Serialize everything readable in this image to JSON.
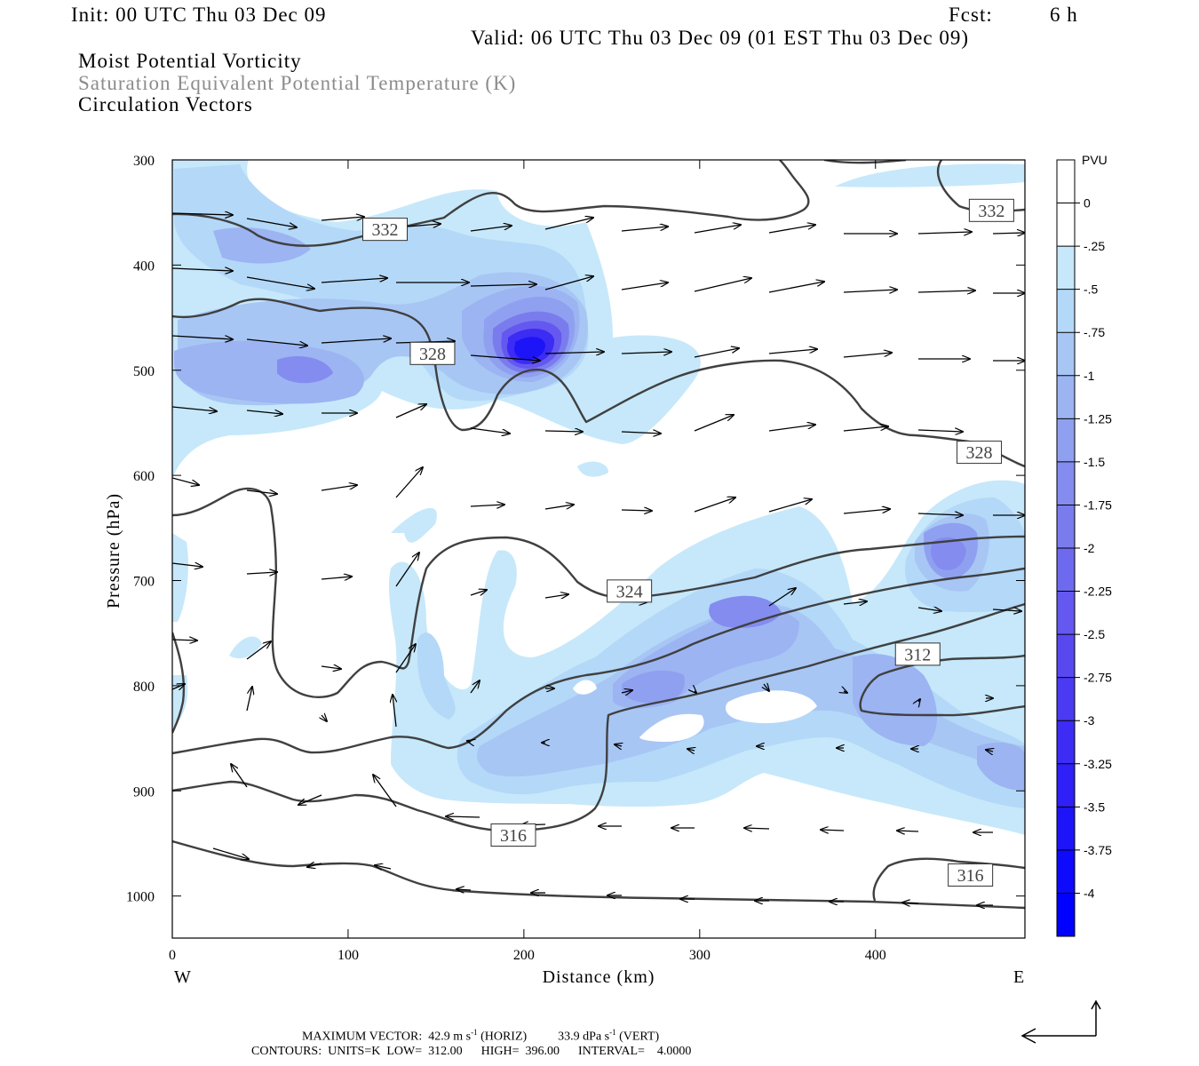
{
  "header": {
    "init": "Init: 00 UTC Thu 03 Dec 09",
    "fcst_label": "Fcst:",
    "fcst_value": "6 h",
    "valid": "Valid: 06 UTC Thu 03 Dec 09 (01 EST Thu 03 Dec 09)",
    "field1": "Moist Potential Vorticity",
    "field2": "Saturation Equivalent Potential Temperature (K)",
    "field3": "Circulation Vectors"
  },
  "footer": {
    "line1a": "MAXIMUM VECTOR:  42.9 m s",
    "line1a_sup": "-1",
    "line1b": " (HORIZ)          33.9 dPa s",
    "line1b_sup": "-1",
    "line1c": " (VERT)",
    "line2": "CONTOURS:  UNITS=K  LOW=  312.00      HIGH=  396.00      INTERVAL=    4.0000"
  },
  "colors": {
    "c_m025": "#c6e8fa",
    "c_m05": "#b4d8f8",
    "c_m075": "#a8c6f4",
    "c_m1": "#9cb4f2",
    "c_m125": "#90a0f0",
    "c_m15": "#848cef",
    "c_m175": "#7a7cee",
    "c_m2": "#6e6aef",
    "c_m225": "#6458f0",
    "c_m25": "#5848f0",
    "c_m3": "#3c2cf4",
    "c_m35": "#1e14f8",
    "c_m4": "#0000ff",
    "contour": "#404040"
  },
  "chart_data": {
    "type": "contour",
    "xlabel": "Distance (km)",
    "ylabel": "Pressure (hPa)",
    "x_range": [
      0,
      485
    ],
    "y_range": [
      300,
      1040
    ],
    "y_inverted": true,
    "x_ticks": [
      0,
      100,
      200,
      300,
      400
    ],
    "x_tick_labels": [
      "0",
      "100",
      "200",
      "300",
      "400"
    ],
    "y_ticks": [
      300,
      400,
      500,
      600,
      700,
      800,
      900,
      1000
    ],
    "y_tick_labels": [
      "300",
      "400",
      "500",
      "600",
      "700",
      "800",
      "900",
      "1000"
    ],
    "x_end_labels": [
      "W",
      "E"
    ],
    "colorbar": {
      "unit": "PVU",
      "levels": [
        "0",
        "-.25",
        "-.5",
        "-.75",
        "-1",
        "-1.25",
        "-1.5",
        "-1.75",
        "-2",
        "-2.25",
        "-2.5",
        "-2.75",
        "-3",
        "-3.25",
        "-3.5",
        "-3.75",
        "-4"
      ]
    },
    "contour_labels": [
      {
        "text": "332",
        "x": 121,
        "y": 366
      },
      {
        "text": "332",
        "x": 466,
        "y": 348
      },
      {
        "text": "328",
        "x": 148,
        "y": 484
      },
      {
        "text": "328",
        "x": 459,
        "y": 578
      },
      {
        "text": "324",
        "x": 260,
        "y": 710
      },
      {
        "text": "312",
        "x": 424,
        "y": 770
      },
      {
        "text": "316",
        "x": 194,
        "y": 942
      },
      {
        "text": "316",
        "x": 454,
        "y": 980
      }
    ]
  }
}
